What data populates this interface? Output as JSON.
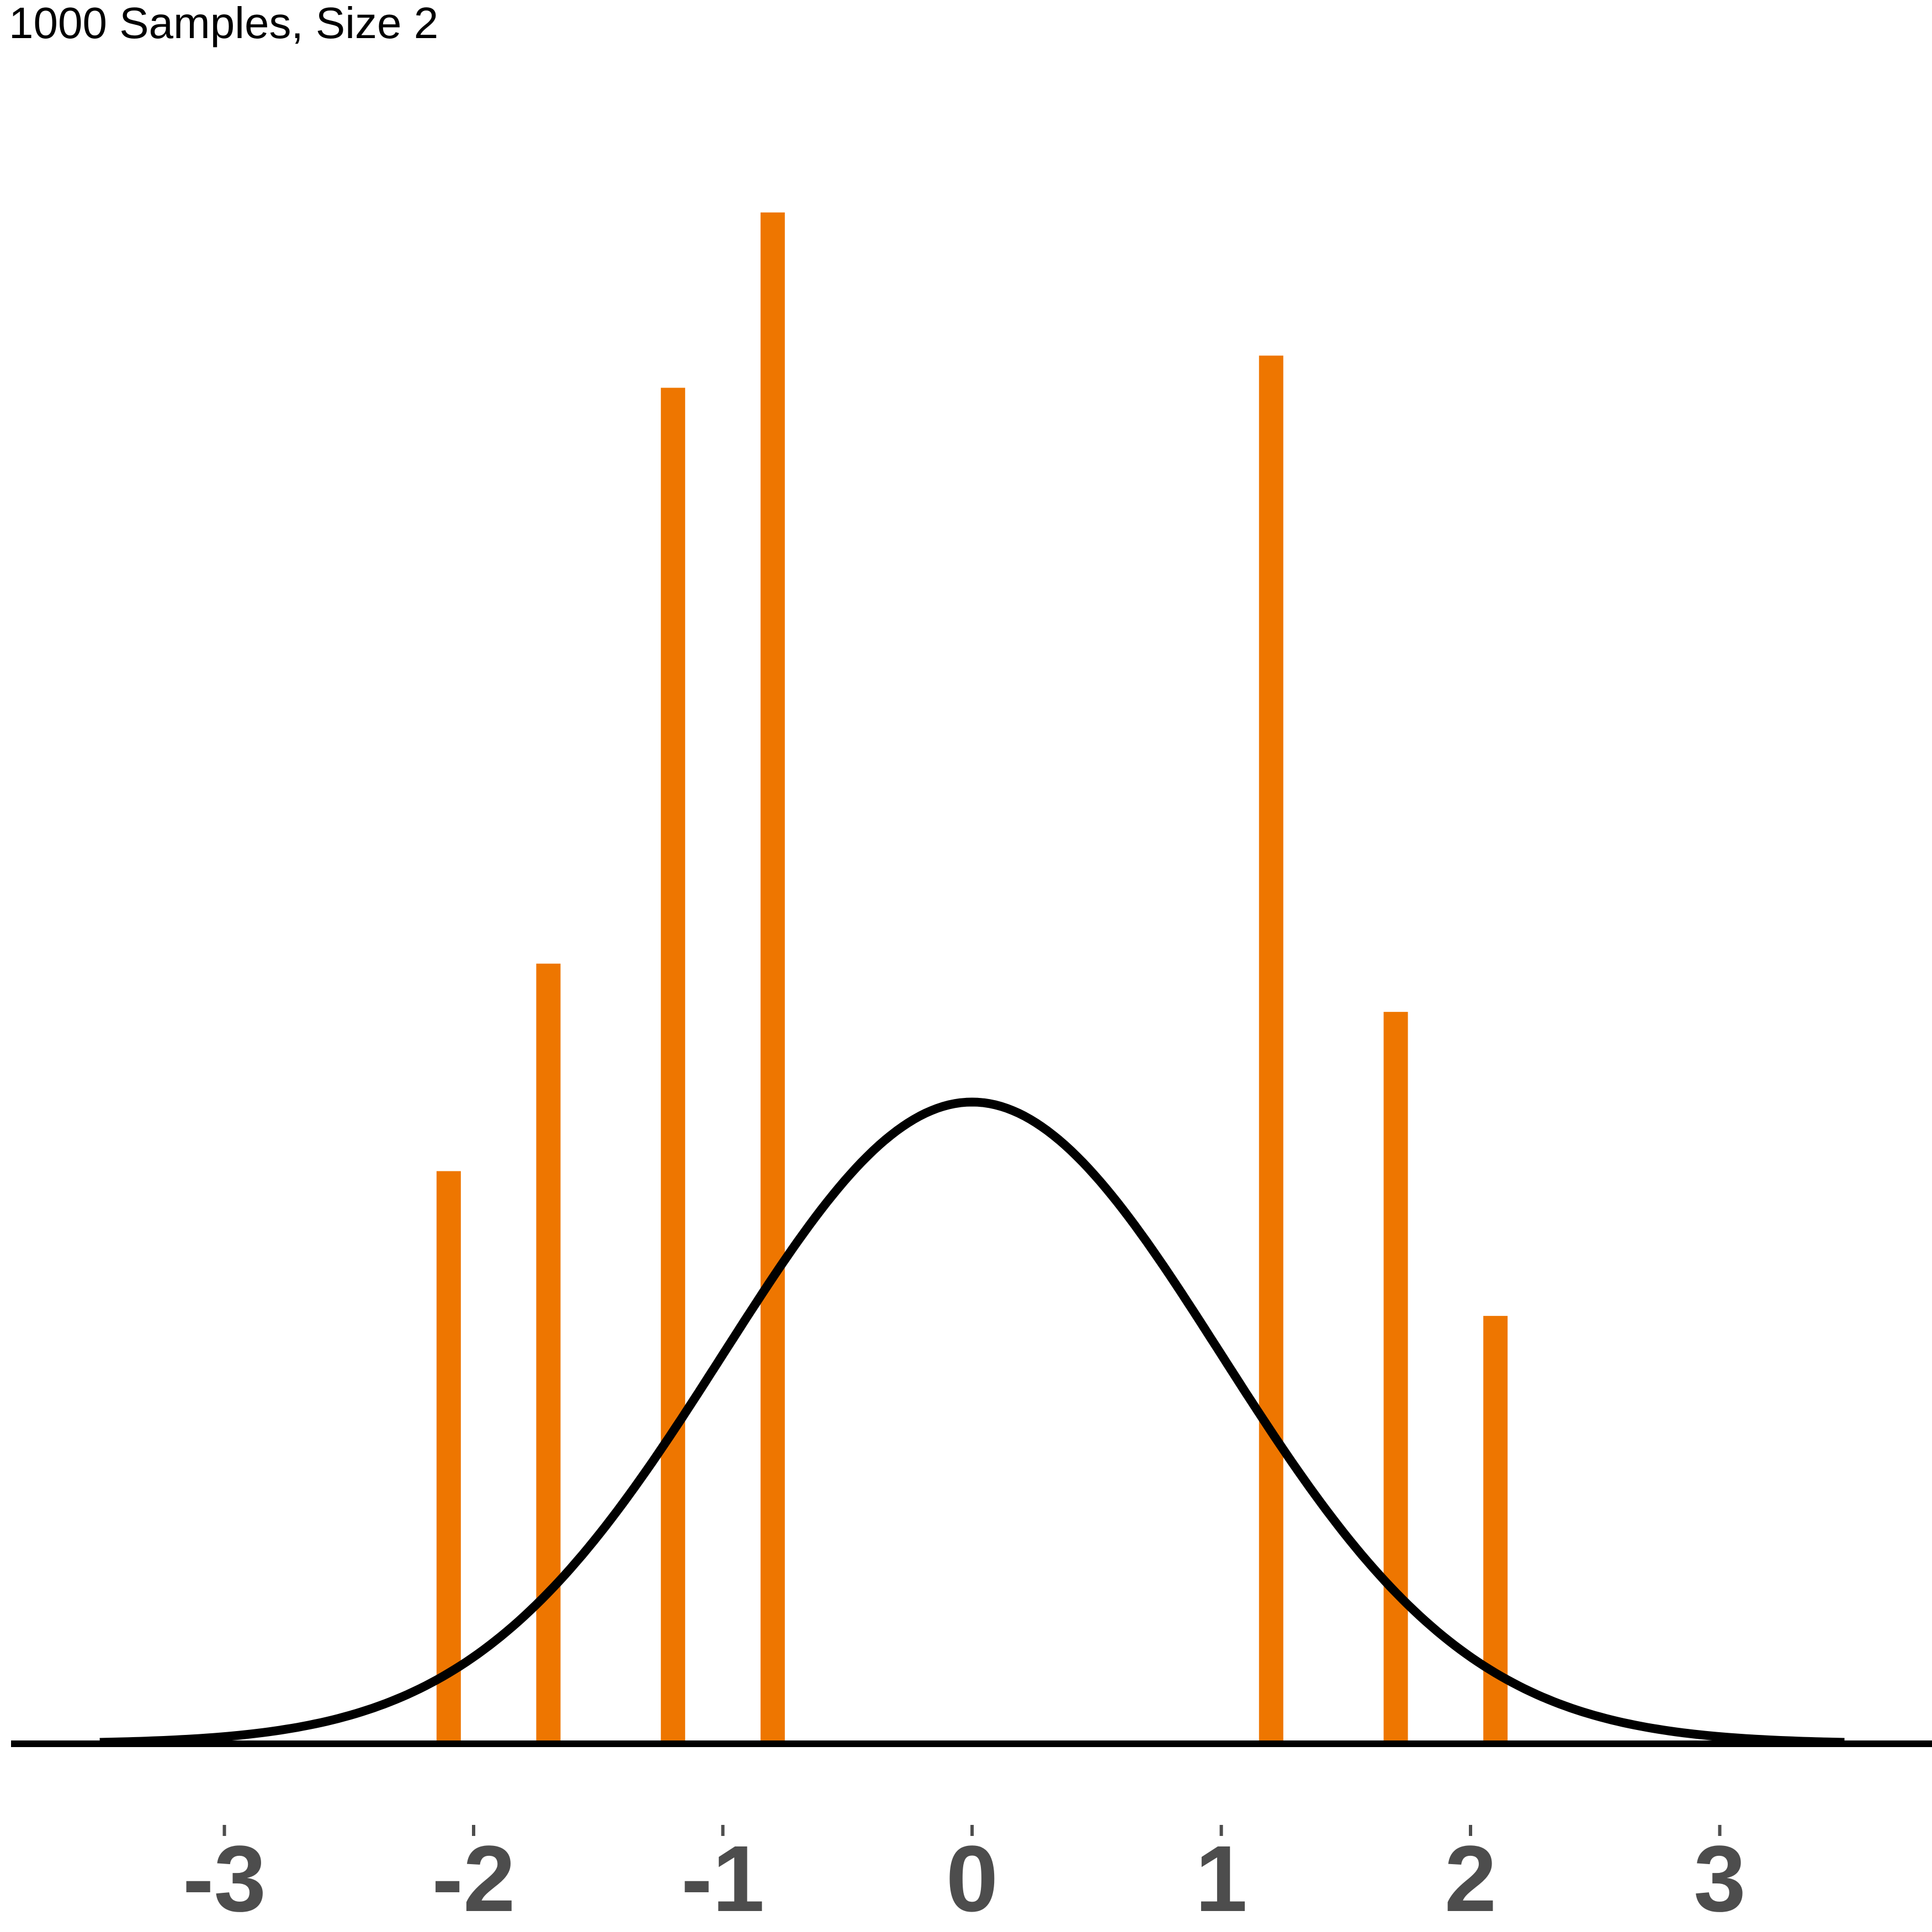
{
  "chart_data": {
    "type": "bar",
    "title": "1000 Samples, Size 2",
    "xlabel": "",
    "ylabel": "",
    "xlim": [
      -3.5,
      3.85
    ],
    "ylim": [
      0,
      0.95
    ],
    "x_ticks": [
      -3,
      -2,
      -1,
      0,
      1,
      2,
      3
    ],
    "tick_labels": [
      "-3",
      "-2",
      "-1",
      "0",
      "1",
      "2",
      "3"
    ],
    "grid": false,
    "legend": "none",
    "bar_color": "#ee7600",
    "curve_color": "#000000",
    "series": [
      {
        "type": "bar",
        "x": [
          -2.1,
          -1.7,
          -1.2,
          -0.8,
          1.2,
          1.7,
          2.1
        ],
        "values": [
          0.356,
          0.485,
          0.843,
          0.952,
          0.863,
          0.455,
          0.266
        ]
      },
      {
        "type": "line",
        "curve": "normal density",
        "mean": 0,
        "sd": 1,
        "x_range": [
          -3.5,
          3.5
        ]
      }
    ]
  }
}
